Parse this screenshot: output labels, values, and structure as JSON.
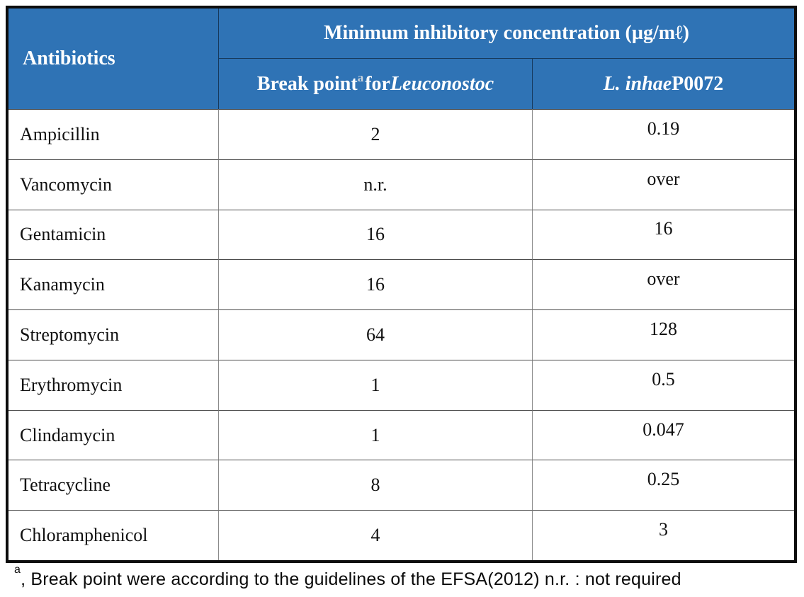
{
  "table": {
    "header": {
      "antibiotics_label": "Antibiotics",
      "mic_title": "Minimum inhibitory concentration (µg/mℓ)",
      "breakpoint_col": {
        "prefix": "Break point",
        "sup_marker": "a",
        "mid": " for ",
        "species": "Leuconostoc"
      },
      "strain_col": {
        "species": "L. inhae",
        "strain_id": " P0072"
      }
    },
    "rows": [
      {
        "name": "Ampicillin",
        "breakpoint": "2",
        "mic": "0.19"
      },
      {
        "name": "Vancomycin",
        "breakpoint": "n.r.",
        "mic": "over"
      },
      {
        "name": "Gentamicin",
        "breakpoint": "16",
        "mic": "16"
      },
      {
        "name": "Kanamycin",
        "breakpoint": "16",
        "mic": "over"
      },
      {
        "name": "Streptomycin",
        "breakpoint": "64",
        "mic": "128"
      },
      {
        "name": "Erythromycin",
        "breakpoint": "1",
        "mic": "0.5"
      },
      {
        "name": "Clindamycin",
        "breakpoint": "1",
        "mic": "0.047"
      },
      {
        "name": "Tetracycline",
        "breakpoint": "8",
        "mic": "0.25"
      },
      {
        "name": "Chloramphenicol",
        "breakpoint": "4",
        "mic": "3"
      }
    ],
    "footnote": {
      "sup_marker": "a",
      "text": ", Break point were according to the guidelines of the EFSA(2012) n.r. : not required"
    }
  },
  "colors": {
    "header_bg": "#2F73B5",
    "header_text": "#FFFFFF",
    "outer_border": "#0D0D0D",
    "row_line": "#4A4A4A",
    "column_line": "#8A8A8A"
  }
}
